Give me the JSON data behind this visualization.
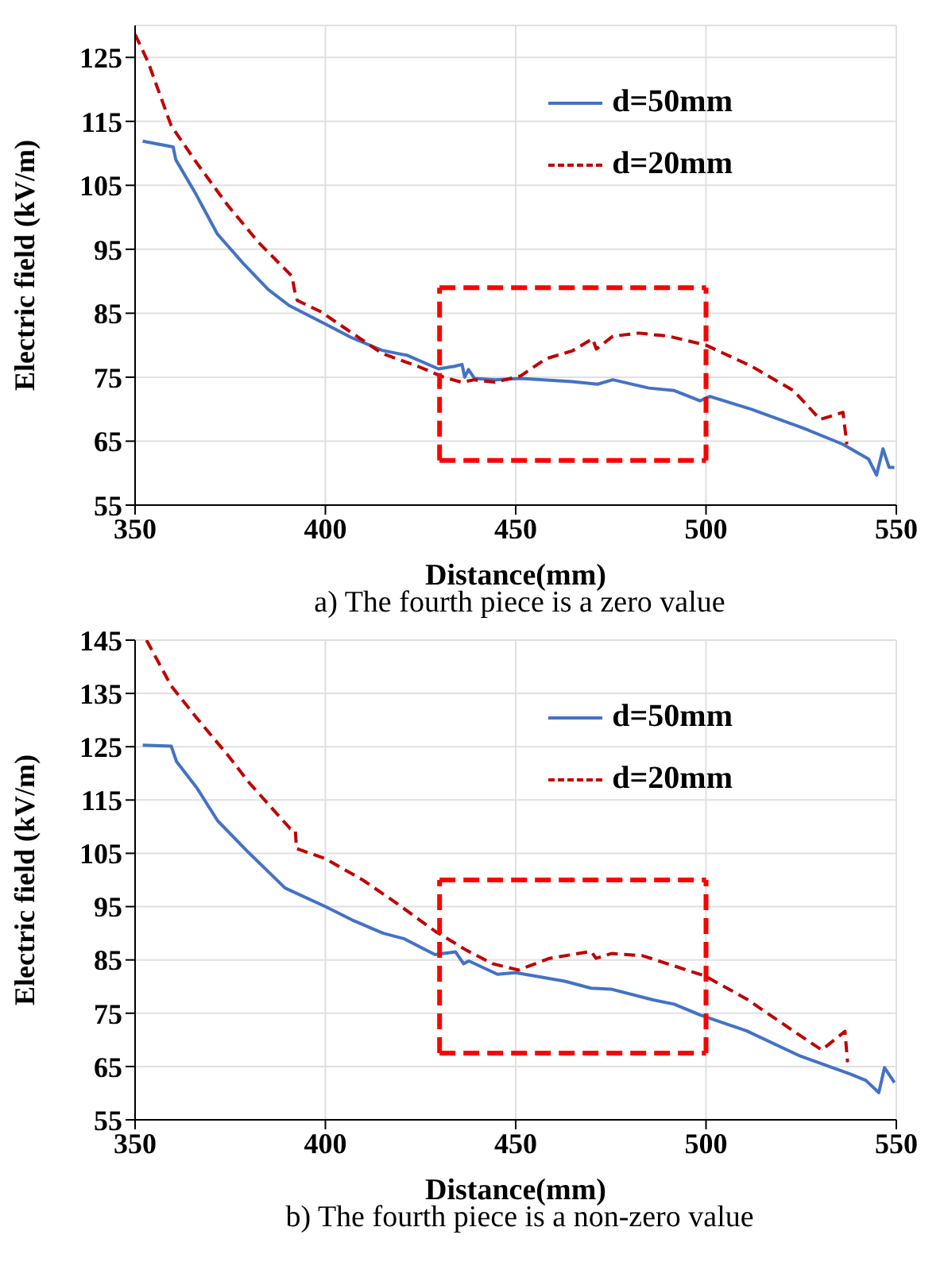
{
  "chart_data": [
    {
      "type": "line",
      "xlabel": "Distance(mm)",
      "ylabel": "Electric field (kV/m)",
      "annotations": [
        "a) The fourth piece is a zero value"
      ],
      "xlim": [
        350,
        550
      ],
      "xticks": [
        350,
        400,
        450,
        500,
        550
      ],
      "ylim": [
        55,
        130
      ],
      "yticks": [
        55,
        65,
        75,
        85,
        95,
        105,
        115,
        125
      ],
      "grid": true,
      "legend": "top right",
      "marker": "none",
      "series": [
        {
          "name": "d=50mm",
          "color": "#4472c4",
          "line_style": "solid",
          "x": [
            352,
            360,
            360.7,
            366,
            371.6,
            378.4,
            385,
            390.5,
            400,
            406.8,
            414.9,
            421.6,
            429.7,
            433.9,
            435.9,
            436.6,
            437.6,
            439.2,
            444.6,
            451.3,
            464.8,
            471.5,
            475.5,
            485,
            491.7,
            498.4,
            501,
            511.8,
            525.3,
            536,
            542.7,
            544.8,
            546.5,
            548.1,
            549.5
          ],
          "values": [
            111.9,
            111,
            109,
            103.6,
            97.4,
            92.8,
            88.7,
            86.2,
            83.3,
            81.2,
            79.2,
            78.4,
            76.3,
            76.7,
            77,
            75,
            76.2,
            74.8,
            74.6,
            74.8,
            74.3,
            73.9,
            74.6,
            73.3,
            72.9,
            71.3,
            72,
            70,
            67.1,
            64.5,
            62.2,
            59.7,
            63.8,
            60.9,
            60.9
          ]
        },
        {
          "name": "d=20mm",
          "color": "#c00000",
          "line_style": "dashed",
          "x": [
            350,
            353.4,
            359.5,
            366.2,
            374.3,
            382.4,
            391.2,
            391.9,
            392.6,
            398.6,
            406.8,
            414.9,
            424.3,
            431.1,
            435.8,
            439.2,
            444.6,
            451.3,
            458,
            464.8,
            470.2,
            471.2,
            475.5,
            482.3,
            490.3,
            500,
            512,
            523,
            530,
            536,
            537
          ],
          "values": [
            128.6,
            124.3,
            114.3,
            108.5,
            101.9,
            96.1,
            90.8,
            88.6,
            87,
            85.3,
            82,
            78.7,
            76.7,
            75,
            74.2,
            74.6,
            74.2,
            75.2,
            77.9,
            79.1,
            81,
            79.4,
            81.4,
            81.9,
            81.4,
            80,
            76.7,
            72.9,
            68.4,
            69.5,
            64.5
          ]
        },
        {
          "color": "#ff0000",
          "line_style": "dashed",
          "x": [
            430,
            500
          ],
          "values": [
            89,
            89
          ]
        },
        {
          "color": "#ff0000",
          "line_style": "dashed",
          "x": [
            430,
            500
          ],
          "values": [
            62,
            62
          ]
        },
        {
          "color": "#ff0000",
          "line_style": "dashed",
          "x": [
            430,
            430
          ],
          "values": [
            62,
            89
          ]
        },
        {
          "color": "#ff0000",
          "line_style": "dashed",
          "x": [
            500,
            500
          ],
          "values": [
            62,
            89
          ]
        }
      ]
    },
    {
      "type": "line",
      "xlabel": "Distance(mm)",
      "ylabel": "Electric field (kV/m)",
      "annotations": [
        "b) The fourth piece is a non-zero value"
      ],
      "xlim": [
        350,
        550
      ],
      "xticks": [
        350,
        400,
        450,
        500,
        550
      ],
      "ylim": [
        55,
        145
      ],
      "yticks": [
        55,
        65,
        75,
        85,
        95,
        105,
        115,
        125,
        135,
        145
      ],
      "grid": true,
      "legend": "top right",
      "marker": "none",
      "series": [
        {
          "name": "d=50mm",
          "color": "#4472c4",
          "line_style": "solid",
          "x": [
            352,
            359.5,
            360.9,
            366.3,
            371.7,
            379.9,
            389.4,
            400,
            407,
            415.2,
            420.6,
            428.8,
            434.2,
            436.3,
            437.7,
            445.2,
            450,
            462.9,
            469.8,
            475.2,
            486.1,
            491.6,
            498.4,
            510.6,
            524.3,
            537.9,
            542,
            545.4,
            546.9,
            549.5
          ],
          "values": [
            125.3,
            125.1,
            122.2,
            117.2,
            111.1,
            105.1,
            98.5,
            95,
            92.5,
            90,
            89,
            86,
            86.5,
            84.3,
            84.8,
            82.3,
            82.6,
            81,
            79.7,
            79.5,
            77.5,
            76.7,
            74.7,
            71.7,
            67.1,
            63.6,
            62.4,
            60.1,
            64.8,
            62
          ]
        },
        {
          "name": "d=20mm",
          "color": "#c00000",
          "line_style": "dashed",
          "x": [
            353,
            359.5,
            366.3,
            374.5,
            379.9,
            390.8,
            392.1,
            392.4,
            400,
            409.8,
            418,
            428.8,
            437.1,
            443.9,
            450.7,
            458.9,
            469.8,
            471.1,
            475.2,
            483.3,
            499.7,
            510.6,
            522.9,
            530.4,
            536.5,
            537.2
          ],
          "values": [
            145,
            136.4,
            130.3,
            123.3,
            118.3,
            109.6,
            109.3,
            105.9,
            104,
            100,
            96,
            90.4,
            86.8,
            84.3,
            83.1,
            85.3,
            86.6,
            85.3,
            86.2,
            85.8,
            82,
            77.7,
            71.7,
            68.1,
            71.6,
            65.8
          ]
        },
        {
          "color": "#ff0000",
          "line_style": "dashed",
          "x": [
            430,
            500
          ],
          "values": [
            100,
            100
          ]
        },
        {
          "color": "#ff0000",
          "line_style": "dashed",
          "x": [
            430,
            500
          ],
          "values": [
            67.5,
            67.5
          ]
        },
        {
          "color": "#ff0000",
          "line_style": "dashed",
          "x": [
            430,
            430
          ],
          "values": [
            67.5,
            100
          ]
        },
        {
          "color": "#ff0000",
          "line_style": "dashed",
          "x": [
            500,
            500
          ],
          "values": [
            67.5,
            100
          ]
        }
      ]
    }
  ]
}
